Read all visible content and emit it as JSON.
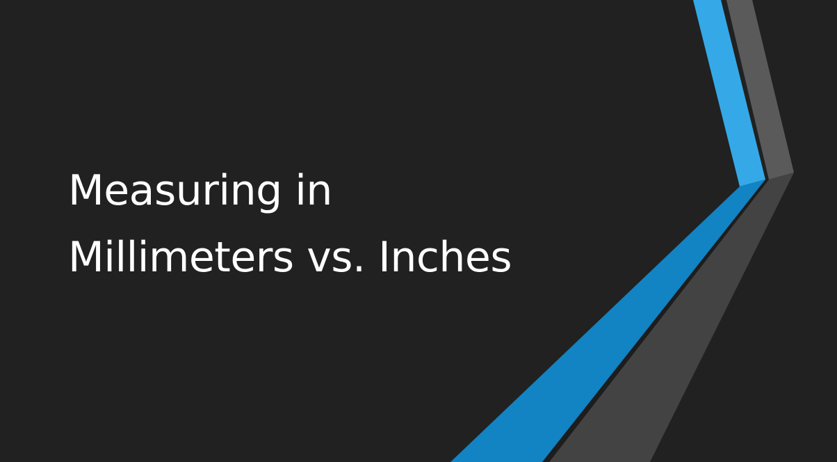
{
  "slide": {
    "title_lines": [
      "Measuring in",
      "Millimeters vs. Inches"
    ]
  },
  "theme": {
    "background": "#212121",
    "accent_blue": "#35a9e8",
    "accent_blue_dark": "#1283c3",
    "accent_gray": "#5a5a5a",
    "accent_gray_dark": "#434343",
    "text_color": "#ffffff"
  }
}
